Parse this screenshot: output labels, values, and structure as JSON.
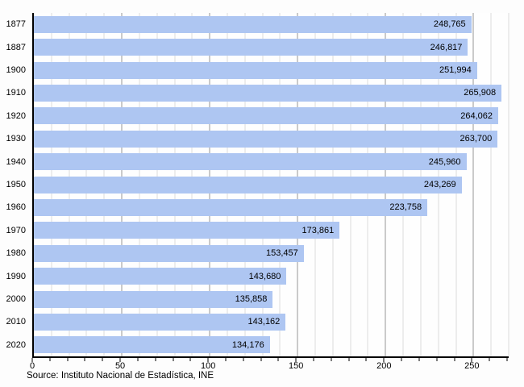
{
  "chart_data": {
    "type": "bar",
    "orientation": "horizontal",
    "title": "",
    "categories": [
      "1877",
      "1887",
      "1900",
      "1910",
      "1920",
      "1930",
      "1940",
      "1950",
      "1960",
      "1970",
      "1980",
      "1990",
      "2000",
      "2010",
      "2020"
    ],
    "values": [
      248765,
      246817,
      251994,
      265908,
      264062,
      263700,
      245960,
      243269,
      223758,
      173861,
      153457,
      143680,
      135858,
      143162,
      134176
    ],
    "value_labels": [
      "248,765",
      "246,817",
      "251,994",
      "265,908",
      "264,062",
      "263,700",
      "245,960",
      "243,269",
      "223,758",
      "173,861",
      "153,457",
      "143,680",
      "135,858",
      "143,162",
      "134,176"
    ],
    "x_axis": {
      "min": 0,
      "max": 270,
      "unit_divisor": 1000,
      "minor_step": 10,
      "major_step": 50,
      "tick_values": [
        0,
        50,
        100,
        150,
        200,
        250
      ],
      "tick_labels": [
        "0",
        "50",
        "100",
        "150",
        "200",
        "250"
      ]
    },
    "grid": "vertical minor every 10, major every 50",
    "legend": null,
    "source": "Source: Instituto Nacional de Estadística, INE",
    "colors": {
      "bar_fill": "#aec6f2",
      "grid_minor": "#dcdcdc",
      "grid_major": "#979797",
      "axis": "#000000",
      "text": "#000000",
      "background": "#ffffff"
    }
  }
}
